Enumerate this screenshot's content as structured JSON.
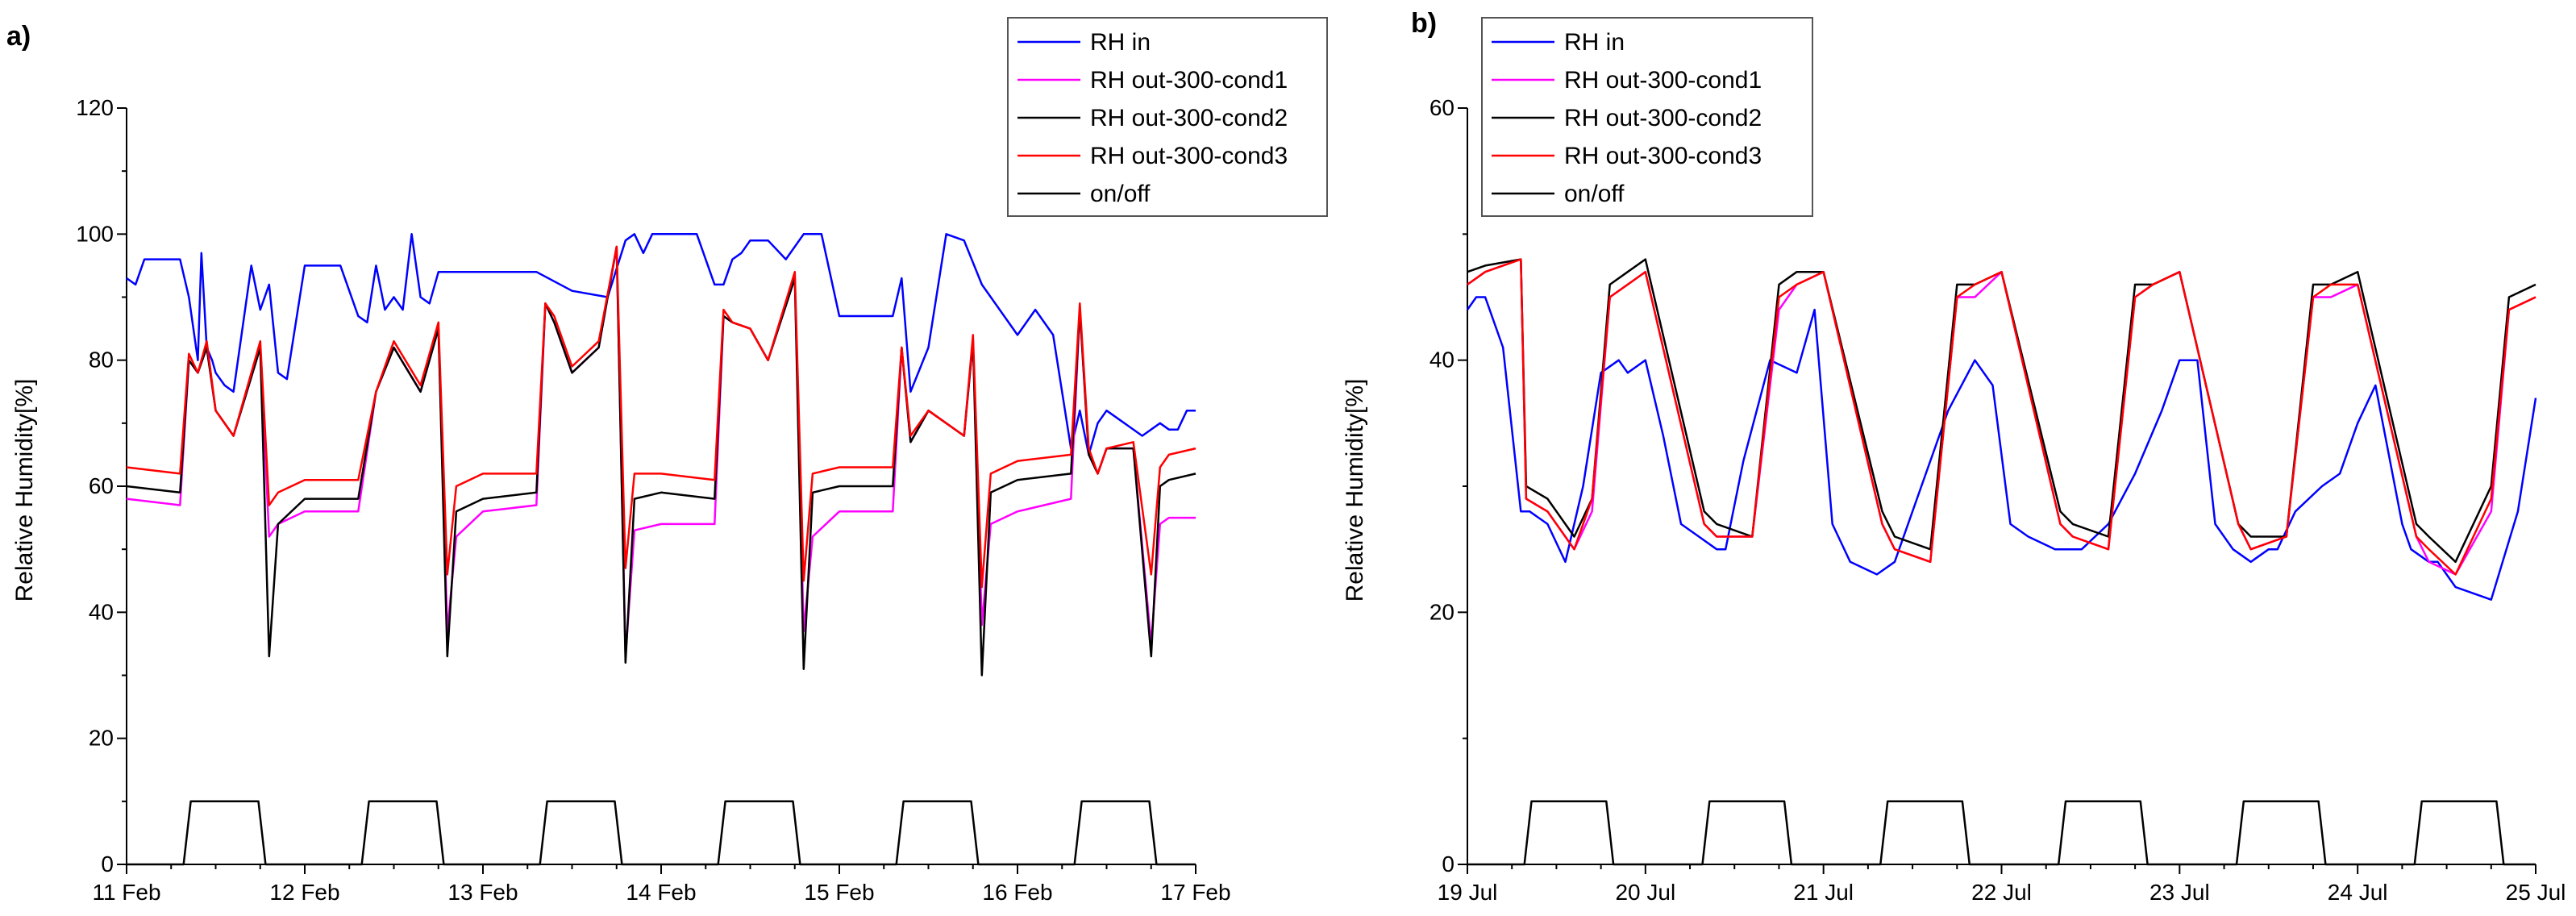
{
  "chart_data": [
    {
      "panel_label": "a)",
      "type": "line",
      "ylabel": "Relative Humidity[%]",
      "xlabel": "",
      "ylim": [
        0,
        120
      ],
      "yticks": [
        0,
        20,
        40,
        60,
        80,
        100,
        120
      ],
      "xlim": [
        0,
        6
      ],
      "xtick_labels": [
        "11 Feb",
        "12 Feb",
        "13 Feb",
        "14 Feb",
        "15 Feb",
        "16 Feb",
        "17 Feb"
      ],
      "grid": false,
      "legend_position": "top-right",
      "legend": [
        "RH in",
        "RH out-300-cond1",
        "RH out-300-cond2",
        "RH out-300-cond3",
        "on/off"
      ],
      "series": [
        {
          "name": "RH in",
          "color": "#0000ff",
          "x": [
            0,
            0.05,
            0.1,
            0.2,
            0.3,
            0.35,
            0.4,
            0.42,
            0.45,
            0.48,
            0.5,
            0.55,
            0.6,
            0.7,
            0.75,
            0.8,
            0.85,
            0.9,
            1.0,
            1.1,
            1.2,
            1.3,
            1.35,
            1.4,
            1.45,
            1.5,
            1.55,
            1.6,
            1.65,
            1.7,
            1.75,
            1.8,
            1.85,
            1.9,
            2.0,
            2.2,
            2.3,
            2.5,
            2.7,
            2.8,
            2.85,
            2.9,
            2.95,
            3.0,
            3.1,
            3.2,
            3.3,
            3.35,
            3.4,
            3.45,
            3.5,
            3.6,
            3.7,
            3.8,
            3.9,
            4.0,
            4.1,
            4.2,
            4.3,
            4.35,
            4.4,
            4.5,
            4.6,
            4.7,
            4.8,
            4.9,
            5.0,
            5.1,
            5.2,
            5.3,
            5.35,
            5.4,
            5.45,
            5.5,
            5.6,
            5.7,
            5.8,
            5.85,
            5.9,
            5.95,
            6.0
          ],
          "y": [
            93,
            92,
            96,
            96,
            96,
            90,
            80,
            97,
            82,
            80,
            78,
            76,
            75,
            95,
            88,
            92,
            78,
            77,
            95,
            95,
            95,
            87,
            86,
            95,
            88,
            90,
            88,
            100,
            90,
            89,
            94,
            94,
            94,
            94,
            94,
            94,
            94,
            91,
            90,
            99,
            100,
            97,
            100,
            100,
            100,
            100,
            92,
            92,
            96,
            97,
            99,
            99,
            96,
            100,
            100,
            87,
            87,
            87,
            87,
            93,
            75,
            82,
            100,
            99,
            92,
            88,
            84,
            88,
            84,
            66,
            72,
            65,
            70,
            72,
            70,
            68,
            70,
            69,
            69,
            72,
            72
          ]
        },
        {
          "name": "RH out-300-cond1",
          "color": "#ff00ff",
          "x": [
            0,
            0.3,
            0.35,
            0.4,
            0.45,
            0.5,
            0.6,
            0.75,
            0.8,
            0.85,
            1.0,
            1.3,
            1.4,
            1.5,
            1.65,
            1.75,
            1.8,
            1.85,
            2.0,
            2.3,
            2.35,
            2.4,
            2.5,
            2.65,
            2.75,
            2.8,
            2.85,
            3.0,
            3.3,
            3.35,
            3.4,
            3.5,
            3.6,
            3.75,
            3.8,
            3.85,
            4.0,
            4.3,
            4.35,
            4.4,
            4.5,
            4.7,
            4.75,
            4.8,
            4.85,
            5.0,
            5.3,
            5.35,
            5.4,
            5.45,
            5.5,
            5.65,
            5.75,
            5.8,
            5.85,
            6.0
          ],
          "y": [
            58,
            57,
            80,
            78,
            82,
            72,
            68,
            82,
            52,
            54,
            56,
            56,
            75,
            82,
            75,
            85,
            37,
            52,
            56,
            57,
            89,
            86,
            78,
            82,
            98,
            33,
            53,
            54,
            54,
            87,
            86,
            85,
            80,
            93,
            37,
            52,
            56,
            56,
            82,
            67,
            72,
            68,
            83,
            38,
            54,
            56,
            58,
            88,
            65,
            62,
            66,
            66,
            35,
            54,
            55,
            55
          ]
        },
        {
          "name": "RH out-300-cond2",
          "color": "#000000",
          "x": [
            0,
            0.3,
            0.35,
            0.4,
            0.45,
            0.5,
            0.6,
            0.75,
            0.8,
            0.85,
            1.0,
            1.3,
            1.4,
            1.5,
            1.65,
            1.75,
            1.8,
            1.85,
            2.0,
            2.3,
            2.35,
            2.4,
            2.5,
            2.65,
            2.75,
            2.8,
            2.85,
            3.0,
            3.3,
            3.35,
            3.4,
            3.5,
            3.6,
            3.75,
            3.8,
            3.85,
            4.0,
            4.3,
            4.35,
            4.4,
            4.5,
            4.7,
            4.75,
            4.8,
            4.85,
            5.0,
            5.3,
            5.35,
            5.4,
            5.45,
            5.5,
            5.65,
            5.75,
            5.8,
            5.85,
            6.0
          ],
          "y": [
            60,
            59,
            80,
            78,
            82,
            72,
            68,
            82,
            33,
            54,
            58,
            58,
            75,
            82,
            75,
            85,
            33,
            56,
            58,
            59,
            89,
            86,
            78,
            82,
            98,
            32,
            58,
            59,
            58,
            87,
            86,
            85,
            80,
            93,
            31,
            59,
            60,
            60,
            82,
            67,
            72,
            68,
            83,
            30,
            59,
            61,
            62,
            88,
            65,
            62,
            66,
            66,
            33,
            60,
            61,
            62
          ]
        },
        {
          "name": "RH out-300-cond3",
          "color": "#ff0000",
          "x": [
            0,
            0.3,
            0.35,
            0.4,
            0.45,
            0.5,
            0.6,
            0.75,
            0.8,
            0.85,
            1.0,
            1.3,
            1.4,
            1.5,
            1.65,
            1.75,
            1.8,
            1.85,
            2.0,
            2.3,
            2.35,
            2.4,
            2.5,
            2.65,
            2.75,
            2.8,
            2.85,
            3.0,
            3.3,
            3.35,
            3.4,
            3.5,
            3.6,
            3.75,
            3.8,
            3.85,
            4.0,
            4.3,
            4.35,
            4.4,
            4.5,
            4.7,
            4.75,
            4.8,
            4.85,
            5.0,
            5.3,
            5.35,
            5.4,
            5.45,
            5.5,
            5.65,
            5.75,
            5.8,
            5.85,
            6.0
          ],
          "y": [
            63,
            62,
            81,
            78,
            83,
            72,
            68,
            83,
            57,
            59,
            61,
            61,
            75,
            83,
            76,
            86,
            46,
            60,
            62,
            62,
            89,
            87,
            79,
            83,
            98,
            47,
            62,
            62,
            61,
            88,
            86,
            85,
            80,
            94,
            45,
            62,
            63,
            63,
            82,
            68,
            72,
            68,
            84,
            44,
            62,
            64,
            65,
            89,
            66,
            62,
            66,
            67,
            46,
            63,
            65,
            66
          ]
        },
        {
          "name": "on/off",
          "color": "#000000",
          "x": [
            0,
            0.32,
            0.36,
            0.74,
            0.78,
            1.0,
            1.32,
            1.36,
            1.74,
            1.78,
            2.0,
            2.32,
            2.36,
            2.74,
            2.78,
            3.0,
            3.32,
            3.36,
            3.74,
            3.78,
            4.0,
            4.32,
            4.36,
            4.74,
            4.78,
            5.0,
            5.32,
            5.36,
            5.74,
            5.78,
            6.0
          ],
          "y": [
            0,
            0,
            10,
            10,
            0,
            0,
            0,
            10,
            10,
            0,
            0,
            0,
            10,
            10,
            0,
            0,
            0,
            10,
            10,
            0,
            0,
            0,
            10,
            10,
            0,
            0,
            0,
            10,
            10,
            0,
            0
          ]
        }
      ]
    },
    {
      "panel_label": "b)",
      "type": "line",
      "ylabel": "Relative Humidity[%]",
      "xlabel": "",
      "ylim": [
        0,
        60
      ],
      "yticks": [
        0,
        20,
        40,
        60
      ],
      "xlim": [
        0,
        6
      ],
      "xtick_labels": [
        "19 Jul",
        "20 Jul",
        "21 Jul",
        "22 Jul",
        "23 Jul",
        "24 Jul",
        "25 Jul"
      ],
      "grid": false,
      "legend_position": "top-left",
      "legend": [
        "RH in",
        "RH out-300-cond1",
        "RH out-300-cond2",
        "RH out-300-cond3",
        "on/off"
      ],
      "series": [
        {
          "name": "RH in",
          "color": "#0000ff",
          "x": [
            0,
            0.05,
            0.1,
            0.2,
            0.3,
            0.35,
            0.45,
            0.55,
            0.65,
            0.75,
            0.85,
            0.9,
            1.0,
            1.1,
            1.2,
            1.3,
            1.4,
            1.45,
            1.55,
            1.7,
            1.85,
            1.95,
            2.05,
            2.15,
            2.3,
            2.4,
            2.55,
            2.7,
            2.85,
            2.95,
            3.05,
            3.15,
            3.3,
            3.45,
            3.6,
            3.75,
            3.9,
            4.0,
            4.1,
            4.2,
            4.3,
            4.4,
            4.5,
            4.55,
            4.65,
            4.8,
            4.9,
            5.0,
            5.1,
            5.25,
            5.3,
            5.4,
            5.45,
            5.55,
            5.75,
            5.9,
            6.0
          ],
          "y": [
            44,
            45,
            45,
            41,
            28,
            28,
            27,
            24,
            30,
            39,
            40,
            39,
            40,
            34,
            27,
            26,
            25,
            25,
            32,
            40,
            39,
            44,
            27,
            24,
            23,
            24,
            30,
            36,
            40,
            38,
            27,
            26,
            25,
            25,
            27,
            31,
            36,
            40,
            40,
            27,
            25,
            24,
            25,
            25,
            28,
            30,
            31,
            35,
            38,
            27,
            25,
            24,
            24,
            22,
            21,
            28,
            37
          ]
        },
        {
          "name": "RH out-300-cond1",
          "color": "#ff00ff",
          "x": [
            0,
            0.1,
            0.3,
            0.33,
            0.45,
            0.6,
            0.7,
            0.8,
            0.9,
            1.0,
            1.33,
            1.4,
            1.6,
            1.75,
            1.85,
            2.0,
            2.33,
            2.4,
            2.6,
            2.75,
            2.85,
            3.0,
            3.33,
            3.4,
            3.6,
            3.75,
            3.85,
            4.0,
            4.33,
            4.4,
            4.6,
            4.75,
            4.85,
            5.0,
            5.33,
            5.4,
            5.55,
            5.75,
            5.85,
            6.0
          ],
          "y": [
            46,
            47,
            48,
            29,
            28,
            25,
            28,
            45,
            46,
            47,
            27,
            26,
            26,
            44,
            46,
            47,
            27,
            25,
            24,
            45,
            45,
            47,
            27,
            26,
            25,
            45,
            46,
            47,
            27,
            25,
            26,
            45,
            45,
            46,
            26,
            24,
            23,
            28,
            44,
            45
          ]
        },
        {
          "name": "RH out-300-cond2",
          "color": "#000000",
          "x": [
            0,
            0.1,
            0.3,
            0.33,
            0.45,
            0.6,
            0.7,
            0.8,
            0.9,
            1.0,
            1.33,
            1.4,
            1.6,
            1.75,
            1.85,
            2.0,
            2.33,
            2.4,
            2.6,
            2.75,
            2.85,
            3.0,
            3.33,
            3.4,
            3.6,
            3.75,
            3.85,
            4.0,
            4.33,
            4.4,
            4.6,
            4.75,
            4.85,
            5.0,
            5.33,
            5.4,
            5.55,
            5.75,
            5.85,
            6.0
          ],
          "y": [
            47,
            47.5,
            48,
            30,
            29,
            26,
            29,
            46,
            47,
            48,
            28,
            27,
            26,
            46,
            47,
            47,
            28,
            26,
            25,
            46,
            46,
            47,
            28,
            27,
            26,
            46,
            46,
            47,
            27,
            26,
            26,
            46,
            46,
            47,
            27,
            26,
            24,
            30,
            45,
            46
          ]
        },
        {
          "name": "RH out-300-cond3",
          "color": "#ff0000",
          "x": [
            0,
            0.1,
            0.3,
            0.33,
            0.45,
            0.6,
            0.7,
            0.8,
            0.9,
            1.0,
            1.33,
            1.4,
            1.6,
            1.75,
            1.85,
            2.0,
            2.33,
            2.4,
            2.6,
            2.75,
            2.85,
            3.0,
            3.33,
            3.4,
            3.6,
            3.75,
            3.85,
            4.0,
            4.33,
            4.4,
            4.6,
            4.75,
            4.85,
            5.0,
            5.33,
            5.4,
            5.55,
            5.75,
            5.85,
            6.0
          ],
          "y": [
            46,
            47,
            48,
            29,
            28,
            25,
            29,
            45,
            46,
            47,
            27,
            26,
            26,
            45,
            46,
            47,
            27,
            25,
            24,
            45,
            46,
            47,
            27,
            26,
            25,
            45,
            46,
            47,
            27,
            25,
            26,
            45,
            46,
            46,
            26,
            25,
            23,
            29,
            44,
            45
          ]
        },
        {
          "name": "on/off",
          "color": "#000000",
          "x": [
            0,
            0.32,
            0.36,
            0.78,
            0.82,
            1.0,
            1.32,
            1.36,
            1.78,
            1.82,
            2.0,
            2.32,
            2.36,
            2.78,
            2.82,
            3.0,
            3.32,
            3.36,
            3.78,
            3.82,
            4.0,
            4.32,
            4.36,
            4.78,
            4.82,
            5.0,
            5.32,
            5.36,
            5.78,
            5.82,
            6.0
          ],
          "y": [
            0,
            0,
            5,
            5,
            0,
            0,
            0,
            5,
            5,
            0,
            0,
            0,
            5,
            5,
            0,
            0,
            0,
            5,
            5,
            0,
            0,
            0,
            5,
            5,
            0,
            0,
            0,
            5,
            5,
            0,
            0
          ]
        }
      ]
    }
  ]
}
